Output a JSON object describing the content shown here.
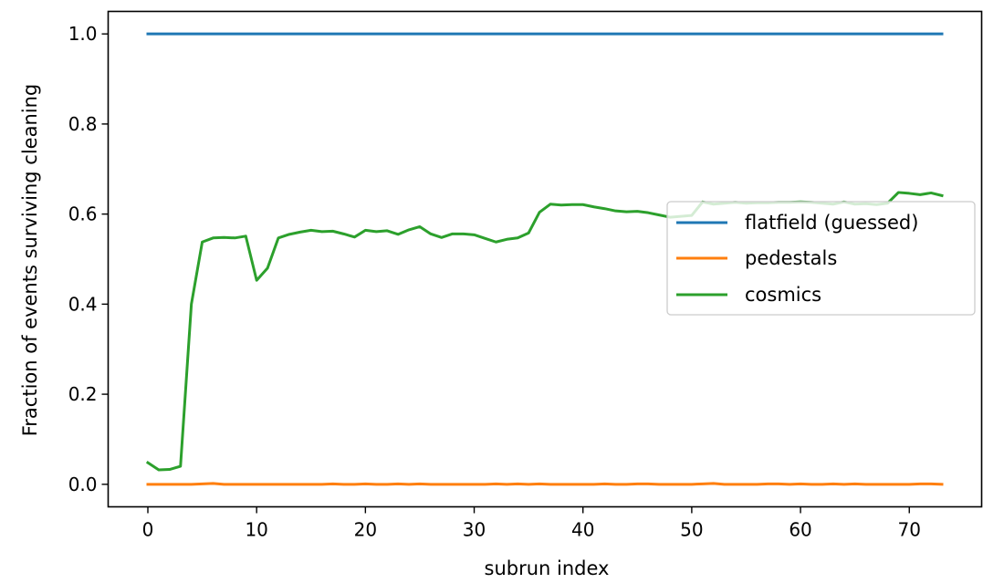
{
  "chart_data": {
    "type": "line",
    "title": "",
    "xlabel": "subrun index",
    "ylabel": "Fraction of events surviving cleaning",
    "xlim": [
      -3.65,
      76.65
    ],
    "ylim": [
      -0.05,
      1.05
    ],
    "xticks": [
      0,
      10,
      20,
      30,
      40,
      50,
      60,
      70
    ],
    "yticks": [
      0.0,
      0.2,
      0.4,
      0.6,
      0.8,
      1.0
    ],
    "xtick_labels": [
      "0",
      "10",
      "20",
      "30",
      "40",
      "50",
      "60",
      "70"
    ],
    "ytick_labels": [
      "0.0",
      "0.2",
      "0.4",
      "0.6",
      "0.8",
      "1.0"
    ],
    "grid": false,
    "legend_position": "center-right",
    "x": [
      0,
      1,
      2,
      3,
      4,
      5,
      6,
      7,
      8,
      9,
      10,
      11,
      12,
      13,
      14,
      15,
      16,
      17,
      18,
      19,
      20,
      21,
      22,
      23,
      24,
      25,
      26,
      27,
      28,
      29,
      30,
      31,
      32,
      33,
      34,
      35,
      36,
      37,
      38,
      39,
      40,
      41,
      42,
      43,
      44,
      45,
      46,
      47,
      48,
      49,
      50,
      51,
      52,
      53,
      54,
      55,
      56,
      57,
      58,
      59,
      60,
      61,
      62,
      63,
      64,
      65,
      66,
      67,
      68,
      69,
      70,
      71,
      72,
      73
    ],
    "series": [
      {
        "name": "flatfield (guessed)",
        "color": "#1f77b4",
        "values": [
          1,
          1,
          1,
          1,
          1,
          1,
          1,
          1,
          1,
          1,
          1,
          1,
          1,
          1,
          1,
          1,
          1,
          1,
          1,
          1,
          1,
          1,
          1,
          1,
          1,
          1,
          1,
          1,
          1,
          1,
          1,
          1,
          1,
          1,
          1,
          1,
          1,
          1,
          1,
          1,
          1,
          1,
          1,
          1,
          1,
          1,
          1,
          1,
          1,
          1,
          1,
          1,
          1,
          1,
          1,
          1,
          1,
          1,
          1,
          1,
          1,
          1,
          1,
          1,
          1,
          1,
          1,
          1,
          1,
          1,
          1,
          1,
          1,
          1
        ]
      },
      {
        "name": "pedestals",
        "color": "#ff7f0e",
        "values": [
          0,
          0,
          0,
          0,
          0,
          0.001,
          0.002,
          0,
          0,
          0,
          0,
          0,
          0,
          0,
          0,
          0,
          0,
          0.001,
          0,
          0,
          0.001,
          0,
          0,
          0.001,
          0,
          0.001,
          0,
          0,
          0,
          0,
          0,
          0,
          0.001,
          0,
          0.001,
          0,
          0.001,
          0,
          0,
          0,
          0,
          0,
          0.001,
          0,
          0,
          0.001,
          0.001,
          0,
          0,
          0,
          0,
          0.001,
          0.002,
          0,
          0,
          0,
          0,
          0.001,
          0.001,
          0,
          0.001,
          0,
          0,
          0.001,
          0,
          0.001,
          0,
          0,
          0,
          0,
          0,
          0.001,
          0.001,
          0
        ]
      },
      {
        "name": "cosmics",
        "color": "#2ca02c",
        "values": [
          0.048,
          0.032,
          0.033,
          0.04,
          0.4,
          0.538,
          0.547,
          0.548,
          0.547,
          0.551,
          0.453,
          0.48,
          0.547,
          0.555,
          0.56,
          0.564,
          0.561,
          0.562,
          0.556,
          0.549,
          0.564,
          0.561,
          0.563,
          0.555,
          0.565,
          0.572,
          0.556,
          0.548,
          0.556,
          0.556,
          0.554,
          0.546,
          0.538,
          0.544,
          0.547,
          0.558,
          0.604,
          0.622,
          0.62,
          0.621,
          0.621,
          0.616,
          0.612,
          0.607,
          0.605,
          0.606,
          0.603,
          0.598,
          0.593,
          0.595,
          0.597,
          0.627,
          0.622,
          0.624,
          0.626,
          0.624,
          0.625,
          0.625,
          0.626,
          0.626,
          0.627,
          0.626,
          0.624,
          0.622,
          0.627,
          0.622,
          0.623,
          0.621,
          0.624,
          0.648,
          0.646,
          0.643,
          0.647,
          0.641
        ]
      }
    ]
  }
}
